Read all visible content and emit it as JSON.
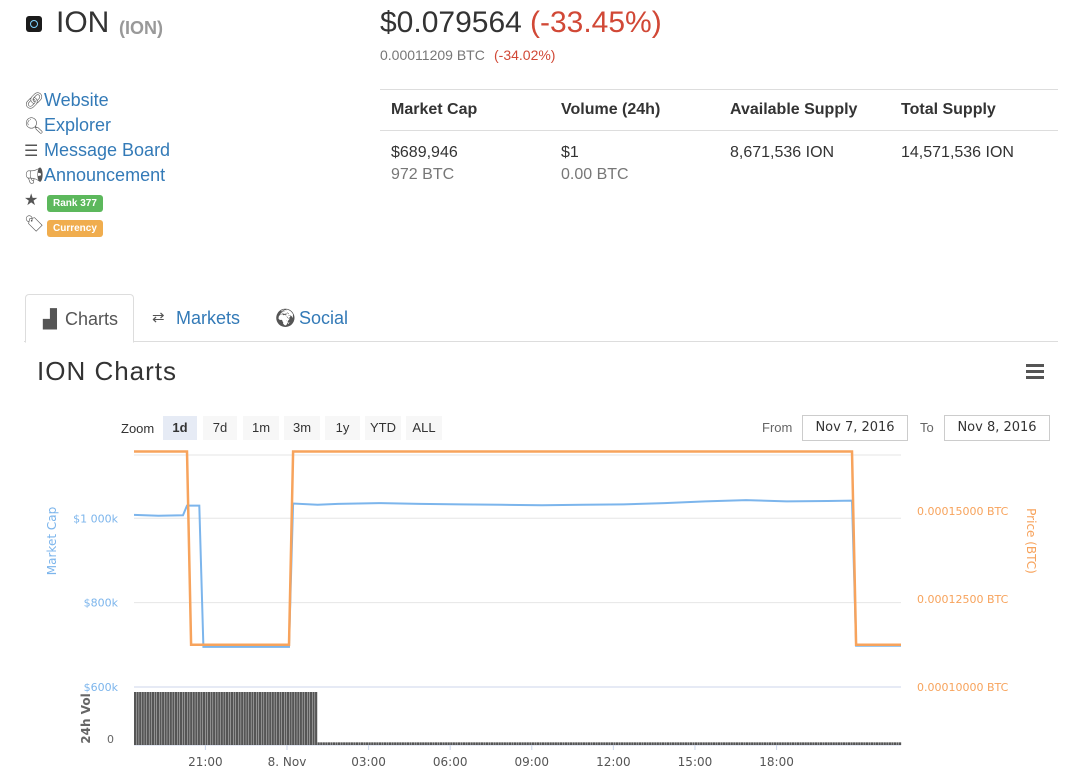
{
  "coin": {
    "name": "ION",
    "symbol": "(ION)",
    "price": "$0.079564",
    "change": "(-33.45%)",
    "price_btc": "0.00011209 BTC",
    "change_btc": "(-34.02%)"
  },
  "links": [
    {
      "label": "Website",
      "icon": "link-icon"
    },
    {
      "label": "Explorer",
      "icon": "search-icon"
    },
    {
      "label": "Message Board",
      "icon": "list-icon"
    },
    {
      "label": "Announcement",
      "icon": "bullhorn-icon"
    }
  ],
  "badges": {
    "rank": "Rank 377",
    "category": "Currency",
    "rank_color": "#5cb85c",
    "category_color": "#f0ad4e"
  },
  "stats": {
    "headers": [
      "Market Cap",
      "Volume (24h)",
      "Available Supply",
      "Total Supply"
    ],
    "market_cap": "$689,946",
    "market_cap_btc": "972 BTC",
    "volume": "$1",
    "volume_btc": "0.00 BTC",
    "available_supply": "8,671,536 ION",
    "total_supply": "14,571,536 ION"
  },
  "tabs": [
    {
      "label": "Charts",
      "icon": "bar-chart-icon",
      "active": true
    },
    {
      "label": "Markets",
      "icon": "exchange-icon",
      "active": false
    },
    {
      "label": "Social",
      "icon": "globe-icon",
      "active": false
    }
  ],
  "chart_title": "ION Charts",
  "zoom": {
    "label": "Zoom",
    "options": [
      "1d",
      "7d",
      "1m",
      "3m",
      "1y",
      "YTD",
      "ALL"
    ],
    "selected": "1d"
  },
  "range": {
    "from_label": "From",
    "from": "Nov 7, 2016",
    "to_label": "To",
    "to": "Nov 8, 2016"
  },
  "chart_data": {
    "type": "line",
    "x_ticks": [
      "21:00",
      "8. Nov",
      "03:00",
      "06:00",
      "09:00",
      "12:00",
      "15:00",
      "18:00"
    ],
    "left_axis": {
      "label": "Market Cap",
      "ticks": [
        "$1 000k",
        "$800k",
        "$600k"
      ],
      "range": [
        600,
        1150
      ],
      "color": "#7cb5ec"
    },
    "right_axis": {
      "label": "Price (BTC)",
      "ticks": [
        "0.00015000 BTC",
        "0.00012500 BTC",
        "0.00010000 BTC"
      ],
      "range": [
        0.0001,
        0.000166
      ],
      "color": "#f7a35c"
    },
    "volume_axis": {
      "label": "24h Vol",
      "ticks": [
        "0"
      ]
    },
    "series": [
      {
        "name": "Market Cap",
        "color": "#7cb5ec",
        "x": [
          0,
          0.6,
          1.2,
          1.3,
          1.6,
          1.7,
          3.8,
          3.9,
          4.5,
          5,
          6,
          7,
          8,
          9,
          10,
          11,
          12,
          13,
          14,
          15,
          16,
          17,
          17.6,
          17.7,
          18.8
        ],
        "y": [
          1008,
          1006,
          1007,
          1030,
          1030,
          695,
          695,
          1035,
          1032,
          1034,
          1036,
          1034,
          1033,
          1032,
          1031,
          1032,
          1033,
          1036,
          1040,
          1043,
          1040,
          1041,
          1042,
          698,
          698
        ]
      },
      {
        "name": "Price (BTC)",
        "color": "#f7a35c",
        "x": [
          0,
          1.3,
          1.4,
          3.8,
          3.9,
          17.6,
          17.7,
          18.8
        ],
        "y": [
          0.000167,
          0.000167,
          0.000112,
          0.000112,
          0.000167,
          0.000167,
          0.000112,
          0.000112
        ]
      }
    ],
    "volume": {
      "x_end_high": 4.5,
      "high": 1,
      "low": 0.05
    },
    "x_tick_positions": [
      1.75,
      3.75,
      5.75,
      7.75,
      9.75,
      11.75,
      13.75,
      15.75
    ]
  }
}
